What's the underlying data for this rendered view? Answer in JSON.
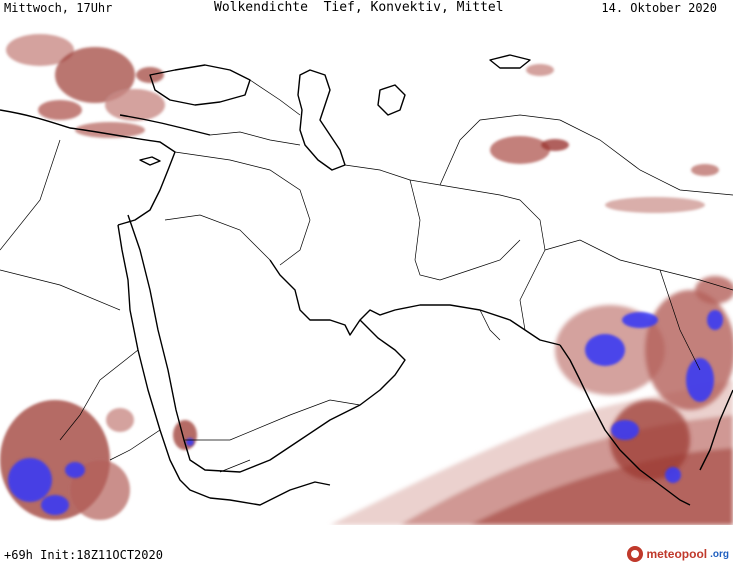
{
  "header": {
    "day_time": "Mittwoch, 17Uhr",
    "title": "Wolkendichte  Tief, Konvektiv, Mittel",
    "date": "14. Oktober 2020"
  },
  "footer": {
    "run_info": "+69h Init:18Z11OCT2020"
  },
  "brand": {
    "name": "meteopool",
    "tld": ".org",
    "color": "#c0392b",
    "tld_color": "#1f5fbf"
  },
  "legend_colors": {
    "cloud_light": "#e7c9c6",
    "cloud_mid": "#c98b86",
    "cloud_dense": "#9c3a33",
    "convective": "#3a3af2",
    "border": "#000000"
  }
}
